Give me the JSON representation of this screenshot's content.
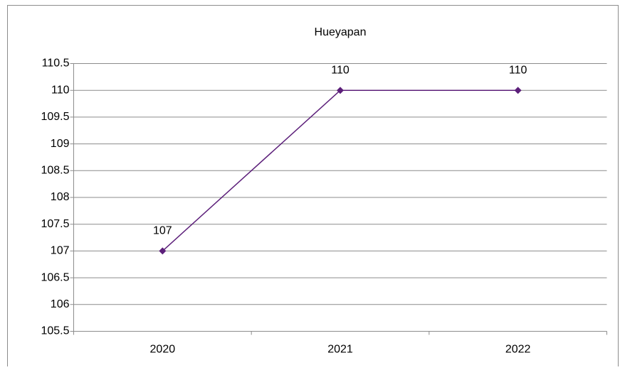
{
  "chart_data": {
    "type": "line",
    "title": "Hueyapan",
    "categories": [
      "2020",
      "2021",
      "2022"
    ],
    "series": [
      {
        "name": "Hueyapan",
        "color": "#5c1f7a",
        "values": [
          107,
          110,
          110
        ]
      }
    ],
    "ylim": [
      105.5,
      110.5
    ],
    "yticks": [
      105.5,
      106,
      106.5,
      107,
      107.5,
      108,
      108.5,
      109,
      109.5,
      110,
      110.5
    ],
    "grid": true
  }
}
